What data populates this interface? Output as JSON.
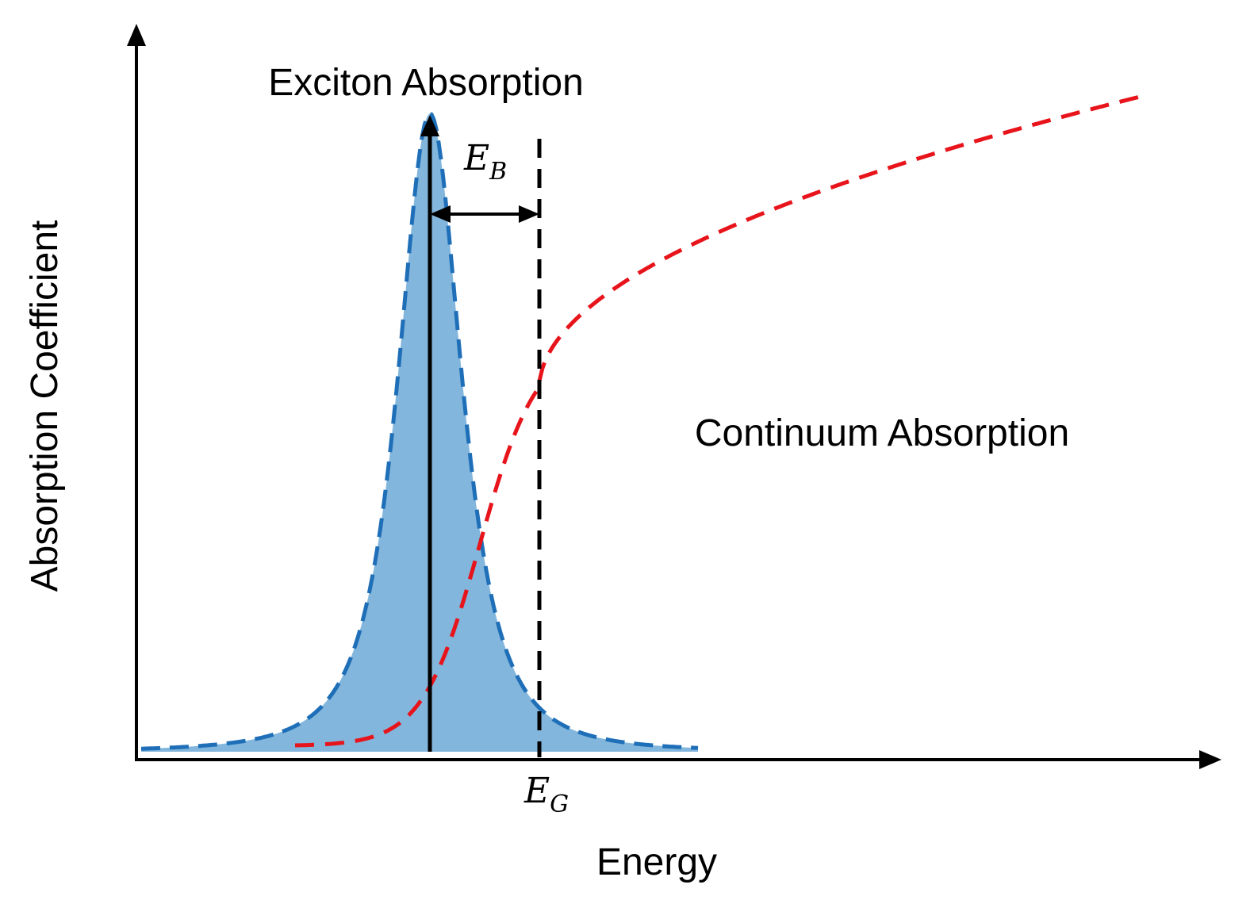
{
  "figure": {
    "ylabel": "Absorption Coefficient",
    "xlabel": "Energy",
    "exciton_label": "Exciton Absorption",
    "continuum_label": "Continuum Absorption",
    "binding_energy": {
      "symbol": "E",
      "subscript": "B"
    },
    "band_gap": {
      "symbol": "E",
      "subscript": "G"
    }
  },
  "colors": {
    "exciton_fill": "#82b6dc",
    "exciton_outline": "#1f6fb8",
    "continuum_curve": "#e8141b",
    "axes": "#000000",
    "gap_line": "#000000"
  }
}
